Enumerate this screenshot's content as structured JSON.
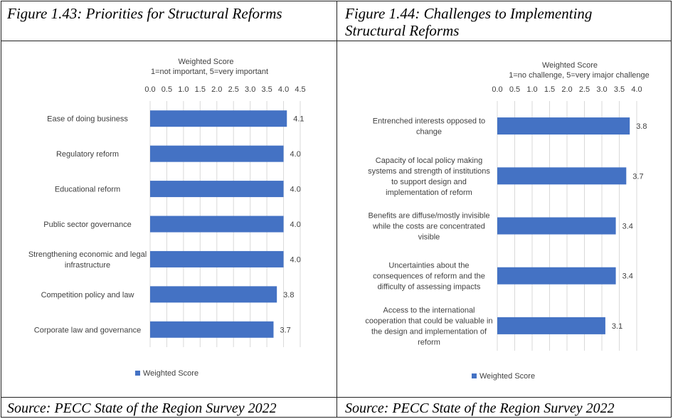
{
  "figures": [
    {
      "title": "Figure 1.43: Priorities for Structural Reforms",
      "source": "Source: PECC State of the Region Survey 2022",
      "chart_data": {
        "type": "bar",
        "orientation": "horizontal",
        "axis_title": "Weighted Score",
        "axis_subtitle": "1=not important, 5=very important",
        "axis_position": "top",
        "xlim": [
          0,
          4.5
        ],
        "ticks": [
          "0.0",
          "0.5",
          "1.0",
          "1.5",
          "2.0",
          "2.5",
          "3.0",
          "3.5",
          "4.0",
          "4.5"
        ],
        "grid": true,
        "bar_color": "#4472C4",
        "categories": [
          [
            "Ease of doing business"
          ],
          [
            "Regulatory reform"
          ],
          [
            "Educational reform"
          ],
          [
            "Public sector governance"
          ],
          [
            "Strengthening economic and legal",
            "infrastructure"
          ],
          [
            "Competition policy and law"
          ],
          [
            "Corporate law and governance"
          ]
        ],
        "values": [
          4.1,
          4.0,
          4.0,
          4.0,
          4.0,
          3.8,
          3.7
        ],
        "data_labels": [
          "4.1",
          "4.0",
          "4.0",
          "4.0",
          "4.0",
          "3.8",
          "3.7"
        ],
        "legend": "bottom",
        "series": [
          {
            "name": "Weighted Score"
          }
        ]
      }
    },
    {
      "title_lines": [
        "Figure 1.44: Challenges to Implementing",
        "Structural Reforms"
      ],
      "source": "Source: PECC State of the Region Survey 2022",
      "chart_data": {
        "type": "bar",
        "orientation": "horizontal",
        "axis_title": "Weighted Score",
        "axis_subtitle": "1=no challenge, 5=very imajor challenge",
        "axis_position": "top",
        "xlim": [
          0,
          4.0
        ],
        "ticks": [
          "0.0",
          "0.5",
          "1.0",
          "1.5",
          "2.0",
          "2.5",
          "3.0",
          "3.5",
          "4.0"
        ],
        "grid": true,
        "bar_color": "#4472C4",
        "categories": [
          [
            "Entrenched interests opposed to",
            "change"
          ],
          [
            "Capacity of local policy making",
            "systems and strength of institutions",
            "to support design and",
            "implementation of reform"
          ],
          [
            "Benefits are diffuse/mostly invisible",
            "while the costs are concentrated",
            "visible"
          ],
          [
            "Uncertainties about the",
            "consequences of reform and the",
            "difficulty of assessing impacts"
          ],
          [
            "Access to the international",
            "cooperation that could be valuable in",
            "the design and implementation of",
            "reform"
          ]
        ],
        "values": [
          3.8,
          3.7,
          3.4,
          3.4,
          3.1
        ],
        "data_labels": [
          "3.8",
          "3.7",
          "3.4",
          "3.4",
          "3.1"
        ],
        "legend": "bottom",
        "series": [
          {
            "name": "Weighted Score"
          }
        ]
      }
    }
  ]
}
